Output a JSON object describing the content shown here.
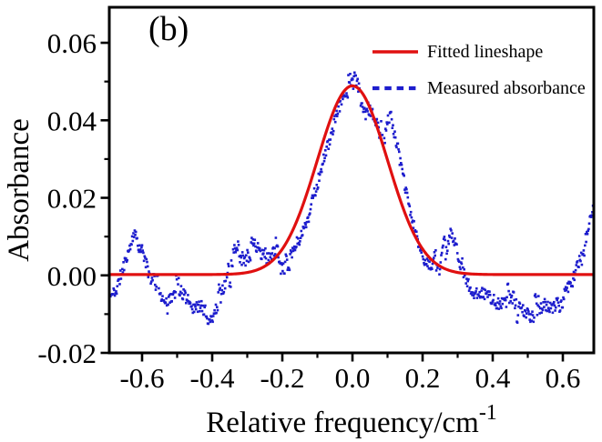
{
  "figure": {
    "panel_label": "(b)",
    "background": "#ffffff",
    "axis_color": "#000000"
  },
  "chart_data": {
    "type": "line+scatter",
    "title": "",
    "panel_label": "(b)",
    "xlabel": "Relative frequency/cm",
    "xlabel_exponent": "-1",
    "ylabel": "Absorbance",
    "x_range": [
      -0.6935,
      0.6883
    ],
    "y_range": [
      -0.02,
      0.06916
    ],
    "grid": false,
    "x_axis": {
      "major_tick_values": [
        -0.6,
        -0.4,
        -0.2,
        0.0,
        0.2,
        0.4,
        0.6
      ],
      "major_tick_labels": [
        "-0.6",
        "-0.4",
        "-0.2",
        "0.0",
        "0.2",
        "0.4",
        "0.6"
      ],
      "minor_tick_values": [
        -0.5,
        -0.3,
        -0.1,
        0.1,
        0.3,
        0.5
      ]
    },
    "y_axis": {
      "major_tick_values": [
        -0.02,
        0.0,
        0.02,
        0.04,
        0.06
      ],
      "major_tick_labels": [
        "-0.02",
        "0.00",
        "0.02",
        "0.04",
        "0.06"
      ],
      "minor_tick_values": [
        -0.01,
        0.01,
        0.03,
        0.05
      ]
    },
    "legend": {
      "position": "top-right",
      "entries": [
        {
          "label": "Fitted lineshape",
          "color": "#e01010",
          "style": "solid-line"
        },
        {
          "label": "Measured absorbance",
          "color": "#1d1dcd",
          "style": "dotted-line"
        }
      ]
    },
    "series": [
      {
        "name": "Fitted lineshape",
        "type": "line",
        "color": "#e01010",
        "line_width": 3.2,
        "model": {
          "shape": "gaussian",
          "amplitude": 0.0487,
          "center": 0.0,
          "sigma": 0.1,
          "baseline": 0.0002
        },
        "points": [
          [
            -0.7,
            0.0002
          ],
          [
            -0.6,
            0.0002
          ],
          [
            -0.5,
            0.0002
          ],
          [
            -0.45,
            0.0002
          ],
          [
            -0.4,
            0.0002
          ],
          [
            -0.35,
            0.0003
          ],
          [
            -0.3,
            0.0007
          ],
          [
            -0.25,
            0.0023
          ],
          [
            -0.2,
            0.0068
          ],
          [
            -0.15,
            0.016
          ],
          [
            -0.1,
            0.0297
          ],
          [
            -0.05,
            0.0432
          ],
          [
            0.0,
            0.0489
          ],
          [
            0.05,
            0.0432
          ],
          [
            0.1,
            0.0297
          ],
          [
            0.15,
            0.016
          ],
          [
            0.2,
            0.0068
          ],
          [
            0.25,
            0.0023
          ],
          [
            0.3,
            0.0007
          ],
          [
            0.35,
            0.0003
          ],
          [
            0.4,
            0.0002
          ],
          [
            0.5,
            0.0002
          ],
          [
            0.6,
            0.0002
          ],
          [
            0.7,
            0.0002
          ]
        ]
      },
      {
        "name": "Measured absorbance",
        "type": "scatter",
        "color": "#1d1dcd",
        "marker": "square-dot",
        "marker_size": 2.6,
        "x_start": -0.69,
        "x_end": 0.686,
        "n_points": 780,
        "noise_amplitude": 0.0016,
        "seed": 11,
        "anchor_points": [
          [
            -0.69,
            -0.0055
          ],
          [
            -0.672,
            -0.0035
          ],
          [
            -0.656,
            0.0015
          ],
          [
            -0.64,
            0.006
          ],
          [
            -0.625,
            0.0105
          ],
          [
            -0.61,
            0.0092
          ],
          [
            -0.596,
            0.0055
          ],
          [
            -0.582,
            0.0008
          ],
          [
            -0.566,
            -0.003
          ],
          [
            -0.55,
            -0.0052
          ],
          [
            -0.532,
            -0.0065
          ],
          [
            -0.512,
            -0.0052
          ],
          [
            -0.492,
            -0.004
          ],
          [
            -0.472,
            -0.006
          ],
          [
            -0.452,
            -0.0085
          ],
          [
            -0.432,
            -0.008
          ],
          [
            -0.412,
            -0.01
          ],
          [
            -0.4,
            -0.011
          ],
          [
            -0.386,
            -0.008
          ],
          [
            -0.37,
            -0.004
          ],
          [
            -0.355,
            0.0
          ],
          [
            -0.34,
            0.004
          ],
          [
            -0.325,
            0.0075
          ],
          [
            -0.31,
            0.0058
          ],
          [
            -0.295,
            0.0075
          ],
          [
            -0.28,
            0.009
          ],
          [
            -0.265,
            0.0058
          ],
          [
            -0.25,
            0.0035
          ],
          [
            -0.235,
            0.005
          ],
          [
            -0.22,
            0.0062
          ],
          [
            -0.205,
            0.004
          ],
          [
            -0.19,
            0.0045
          ],
          [
            -0.175,
            0.0058
          ],
          [
            -0.16,
            0.008
          ],
          [
            -0.145,
            0.0105
          ],
          [
            -0.13,
            0.014
          ],
          [
            -0.115,
            0.018
          ],
          [
            -0.1,
            0.0235
          ],
          [
            -0.085,
            0.029
          ],
          [
            -0.07,
            0.0335
          ],
          [
            -0.055,
            0.038
          ],
          [
            -0.04,
            0.043
          ],
          [
            -0.025,
            0.0468
          ],
          [
            -0.01,
            0.0505
          ],
          [
            -0.002,
            0.0522
          ],
          [
            0.008,
            0.0508
          ],
          [
            0.02,
            0.0478
          ],
          [
            0.035,
            0.0448
          ],
          [
            0.05,
            0.0422
          ],
          [
            0.065,
            0.0405
          ],
          [
            0.08,
            0.0388
          ],
          [
            0.095,
            0.0375
          ],
          [
            0.108,
            0.042
          ],
          [
            0.122,
            0.036
          ],
          [
            0.138,
            0.0285
          ],
          [
            0.154,
            0.021
          ],
          [
            0.17,
            0.0145
          ],
          [
            0.185,
            0.0092
          ],
          [
            0.2,
            0.005
          ],
          [
            0.215,
            0.0025
          ],
          [
            0.23,
            0.0012
          ],
          [
            0.245,
            0.0035
          ],
          [
            0.26,
            0.008
          ],
          [
            0.275,
            0.0115
          ],
          [
            0.29,
            0.009
          ],
          [
            0.305,
            0.004
          ],
          [
            0.32,
            0.0
          ],
          [
            0.335,
            -0.0035
          ],
          [
            0.352,
            -0.005
          ],
          [
            0.37,
            -0.004
          ],
          [
            0.39,
            -0.0055
          ],
          [
            0.41,
            -0.007
          ],
          [
            0.43,
            -0.0075
          ],
          [
            0.45,
            -0.006
          ],
          [
            0.47,
            -0.0078
          ],
          [
            0.49,
            -0.0095
          ],
          [
            0.51,
            -0.0105
          ],
          [
            0.53,
            -0.0095
          ],
          [
            0.55,
            -0.0075
          ],
          [
            0.57,
            -0.0085
          ],
          [
            0.59,
            -0.0065
          ],
          [
            0.61,
            -0.004
          ],
          [
            0.63,
            -0.001
          ],
          [
            0.648,
            0.004
          ],
          [
            0.664,
            0.009
          ],
          [
            0.676,
            0.014
          ],
          [
            0.686,
            0.018
          ]
        ]
      }
    ]
  }
}
